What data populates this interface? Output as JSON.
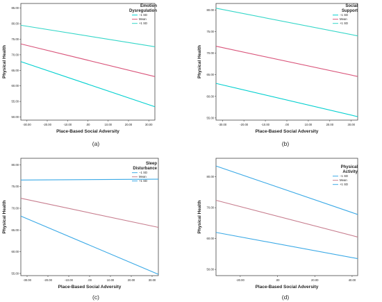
{
  "figure": {
    "panel_letters": [
      "(a)",
      "(b)",
      "(c)",
      "(d)"
    ]
  },
  "chart_data": [
    {
      "type": "line",
      "panel": "(a)",
      "xlabel": "Place-Based Social Adversity",
      "ylabel": "Physical Health",
      "xlim": [
        -33,
        33
      ],
      "ylim": [
        49,
        86.5
      ],
      "x_ticks": [
        -30,
        -20,
        -10,
        0,
        10,
        20,
        30
      ],
      "x_tick_labels": [
        "-30.00",
        "-20.00",
        "-10.00",
        ".00",
        "10.00",
        "20.00",
        "30.00"
      ],
      "y_ticks": [
        50,
        55,
        60,
        65,
        70,
        75,
        80,
        85
      ],
      "y_tick_labels": [
        "50.00",
        "55.00",
        "60.00",
        "65.00",
        "70.00",
        "75.00",
        "80.00",
        "85.00"
      ],
      "legend_title": [
        "Emotion",
        "Dysregulation"
      ],
      "legend_position": "top-right",
      "grid": false,
      "series": [
        {
          "name": "−1 SD",
          "color": "#00cfcf",
          "x": [
            -33,
            33
          ],
          "values": [
            67.8,
            53.3
          ]
        },
        {
          "name": "Mean",
          "color": "#d9547a",
          "x": [
            -33,
            33
          ],
          "values": [
            73.5,
            63.0
          ]
        },
        {
          "name": "+1 SD",
          "color": "#33d6c8",
          "x": [
            -33,
            33
          ],
          "values": [
            79.5,
            72.6
          ]
        }
      ]
    },
    {
      "type": "line",
      "panel": "(b)",
      "xlabel": "Place-Based Social Adversity",
      "ylabel": "Physical Health",
      "xlim": [
        -33,
        33
      ],
      "ylim": [
        54.5,
        81.5
      ],
      "x_ticks": [
        -30,
        -20,
        -10,
        0,
        10,
        20,
        30
      ],
      "x_tick_labels": [
        "-30.00",
        "-20.00",
        "-10.00",
        ".00",
        "10.00",
        "20.00",
        "30.00"
      ],
      "y_ticks": [
        55,
        60,
        65,
        70,
        75,
        80
      ],
      "y_tick_labels": [
        "55.00",
        "60.00",
        "65.00",
        "70.00",
        "75.00",
        "80.00"
      ],
      "legend_title": [
        "Social",
        "Support"
      ],
      "legend_position": "top-right",
      "grid": false,
      "series": [
        {
          "name": "−1 SD",
          "color": "#00cfcf",
          "x": [
            -33,
            33
          ],
          "values": [
            63.0,
            55.3
          ]
        },
        {
          "name": "Mean",
          "color": "#d9547a",
          "x": [
            -33,
            33
          ],
          "values": [
            71.6,
            64.6
          ]
        },
        {
          "name": "+1 SD",
          "color": "#33d6c8",
          "x": [
            -33,
            33
          ],
          "values": [
            80.4,
            74.0
          ]
        }
      ]
    },
    {
      "type": "line",
      "panel": "(c)",
      "xlabel": "Place-Based Social Adversity",
      "ylabel": "Physical Health",
      "xlim": [
        -33,
        33
      ],
      "ylim": [
        54.5,
        81.5
      ],
      "x_ticks": [
        -30,
        -20,
        -10,
        0,
        10,
        20,
        30
      ],
      "x_tick_labels": [
        "-30.00",
        "-20.00",
        "-10.00",
        ".00",
        "10.00",
        "20.00",
        "30.00"
      ],
      "y_ticks": [
        55,
        60,
        65,
        70,
        75,
        80
      ],
      "y_tick_labels": [
        "55.00",
        "60.00",
        "65.00",
        "70.00",
        "75.00",
        "80.00"
      ],
      "legend_title": [
        "Sleep",
        "Disturbance"
      ],
      "legend_position": "top-right",
      "grid": false,
      "series": [
        {
          "name": "−1 SD",
          "color": "#3aa9e6",
          "x": [
            -33,
            33
          ],
          "values": [
            68.2,
            54.8
          ]
        },
        {
          "name": "Mean",
          "color": "#c77d8e",
          "x": [
            -33,
            33
          ],
          "values": [
            72.3,
            65.6
          ]
        },
        {
          "name": "+1 SD",
          "color": "#3aa9e6",
          "x": [
            -33,
            33
          ],
          "values": [
            76.5,
            76.7
          ]
        }
      ]
    },
    {
      "type": "line",
      "panel": "(d)",
      "xlabel": "Place-Based Social Adversity",
      "ylabel": "Physical Health",
      "xlim": [
        -33,
        43
      ],
      "ylim": [
        48,
        86
      ],
      "x_ticks": [
        -20,
        0,
        20,
        40
      ],
      "x_tick_labels": [
        "-20.00",
        ".00",
        "20.00",
        "40.00"
      ],
      "y_ticks": [
        50,
        60,
        70,
        80
      ],
      "y_tick_labels": [
        "50.00",
        "60.00",
        "70.00",
        "80.00"
      ],
      "legend_title": [
        "Physical",
        "Activity"
      ],
      "legend_position": "top-right",
      "grid": false,
      "series": [
        {
          "name": "−1 SD",
          "color": "#3aa9e6",
          "x": [
            -33,
            43
          ],
          "values": [
            62.0,
            53.5
          ]
        },
        {
          "name": "Mean",
          "color": "#c77d8e",
          "x": [
            -33,
            43
          ],
          "values": [
            72.4,
            60.5
          ]
        },
        {
          "name": "+1 SD",
          "color": "#3aa9e6",
          "x": [
            -33,
            43
          ],
          "values": [
            83.5,
            67.8
          ]
        }
      ]
    }
  ]
}
